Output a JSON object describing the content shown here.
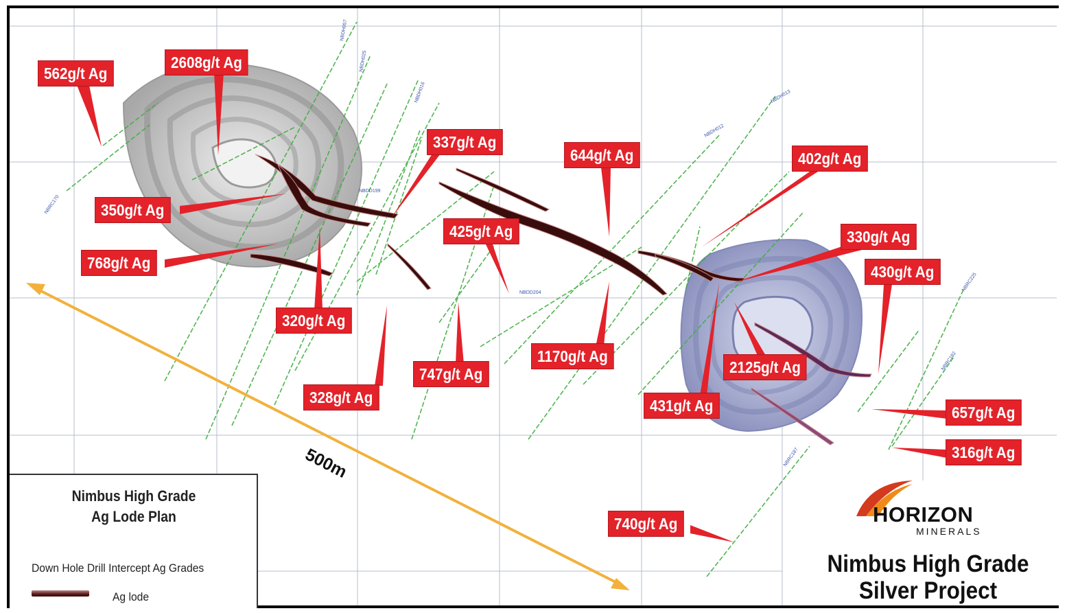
{
  "map": {
    "labels": [
      {
        "text": "562g/t Ag"
      },
      {
        "text": "2608g/t Ag"
      },
      {
        "text": "337g/t Ag"
      },
      {
        "text": "644g/t Ag"
      },
      {
        "text": "402g/t Ag"
      },
      {
        "text": "350g/t Ag"
      },
      {
        "text": "425g/t Ag"
      },
      {
        "text": "330g/t Ag"
      },
      {
        "text": "768g/t Ag"
      },
      {
        "text": "430g/t Ag"
      },
      {
        "text": "320g/t Ag"
      },
      {
        "text": "1170g/t Ag"
      },
      {
        "text": "2125g/t Ag"
      },
      {
        "text": "747g/t Ag"
      },
      {
        "text": "328g/t Ag"
      },
      {
        "text": "431g/t Ag"
      },
      {
        "text": "657g/t Ag"
      },
      {
        "text": "316g/t Ag"
      },
      {
        "text": "740g/t Ag"
      }
    ],
    "scale_bar_label": "500m",
    "colors": {
      "label_red": "#e3222a",
      "scale_arrow": "#f2b13c",
      "drillhole_green": "#3fae3f",
      "pit_west": "#b9b9b9",
      "pit_east": "#9da3c9",
      "lode": "#3a0d0d"
    }
  },
  "legend": {
    "title_line1": "Nimbus High Grade",
    "title_line2": "Ag Lode Plan",
    "subtitle": "Down Hole Drill Intercept Ag Grades",
    "lode_label": "Ag lode"
  },
  "branding": {
    "logo_name": "HORIZON",
    "logo_sub": "MINERALS",
    "project_line1": "Nimbus High Grade",
    "project_line2": "Silver Project"
  }
}
